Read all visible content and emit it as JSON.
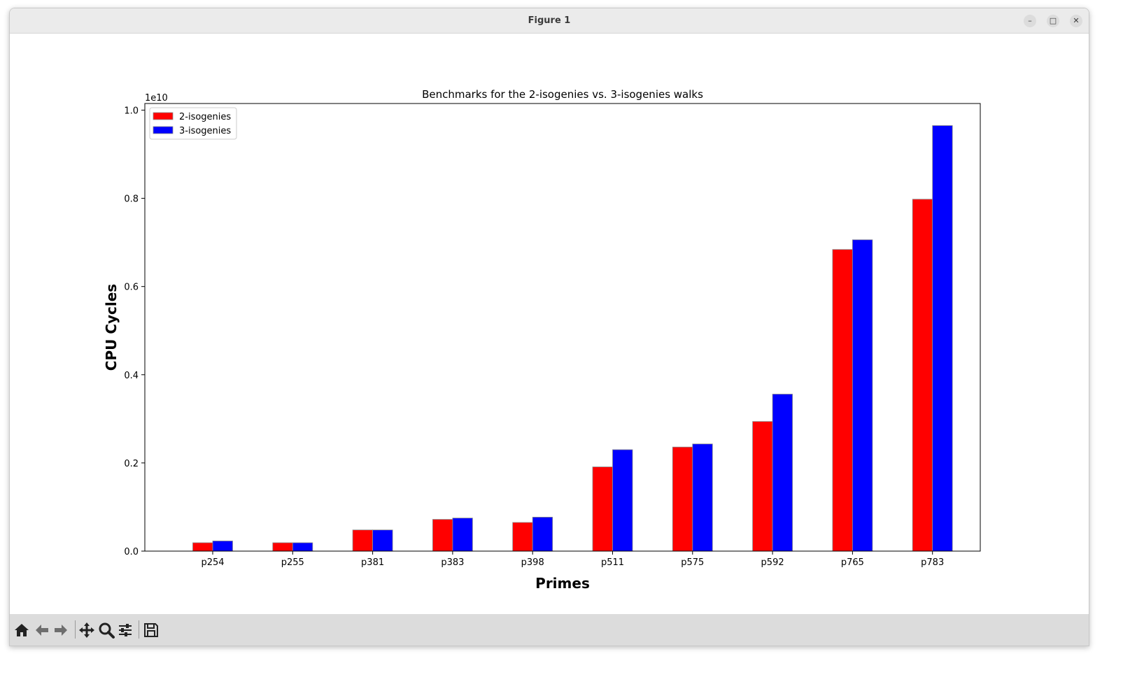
{
  "window": {
    "title": "Figure 1",
    "controls": {
      "minimize": "minimize-icon",
      "maximize": "maximize-icon",
      "close": "close-icon"
    }
  },
  "chart_data": {
    "type": "bar",
    "title": "Benchmarks for the 2-isogenies vs. 3-isogenies walks",
    "xlabel": "Primes",
    "ylabel": "CPU Cycles",
    "offset_label": "1e10",
    "categories": [
      "p254",
      "p255",
      "p381",
      "p383",
      "p398",
      "p511",
      "p575",
      "p592",
      "p765",
      "p783"
    ],
    "series": [
      {
        "name": "2-isogenies",
        "color": "#ff0000",
        "values": [
          0.019,
          0.019,
          0.048,
          0.072,
          0.065,
          0.191,
          0.236,
          0.294,
          0.684,
          0.798
        ]
      },
      {
        "name": "3-isogenies",
        "color": "#0000ff",
        "values": [
          0.023,
          0.019,
          0.048,
          0.075,
          0.077,
          0.23,
          0.243,
          0.356,
          0.706,
          0.965
        ]
      }
    ],
    "ylim": [
      0,
      1.015
    ],
    "yticks": [
      "0.0",
      "0.2",
      "0.4",
      "0.6",
      "0.8",
      "1.0"
    ],
    "ytick_values": [
      0,
      0.2,
      0.4,
      0.6,
      0.8,
      1.0
    ],
    "grid": false,
    "legend_position": "upper-left"
  },
  "toolbar": {
    "tools": [
      "home-icon",
      "back-icon",
      "forward-icon",
      "pan-icon",
      "zoom-icon",
      "configure-subplots-icon",
      "save-icon"
    ]
  }
}
